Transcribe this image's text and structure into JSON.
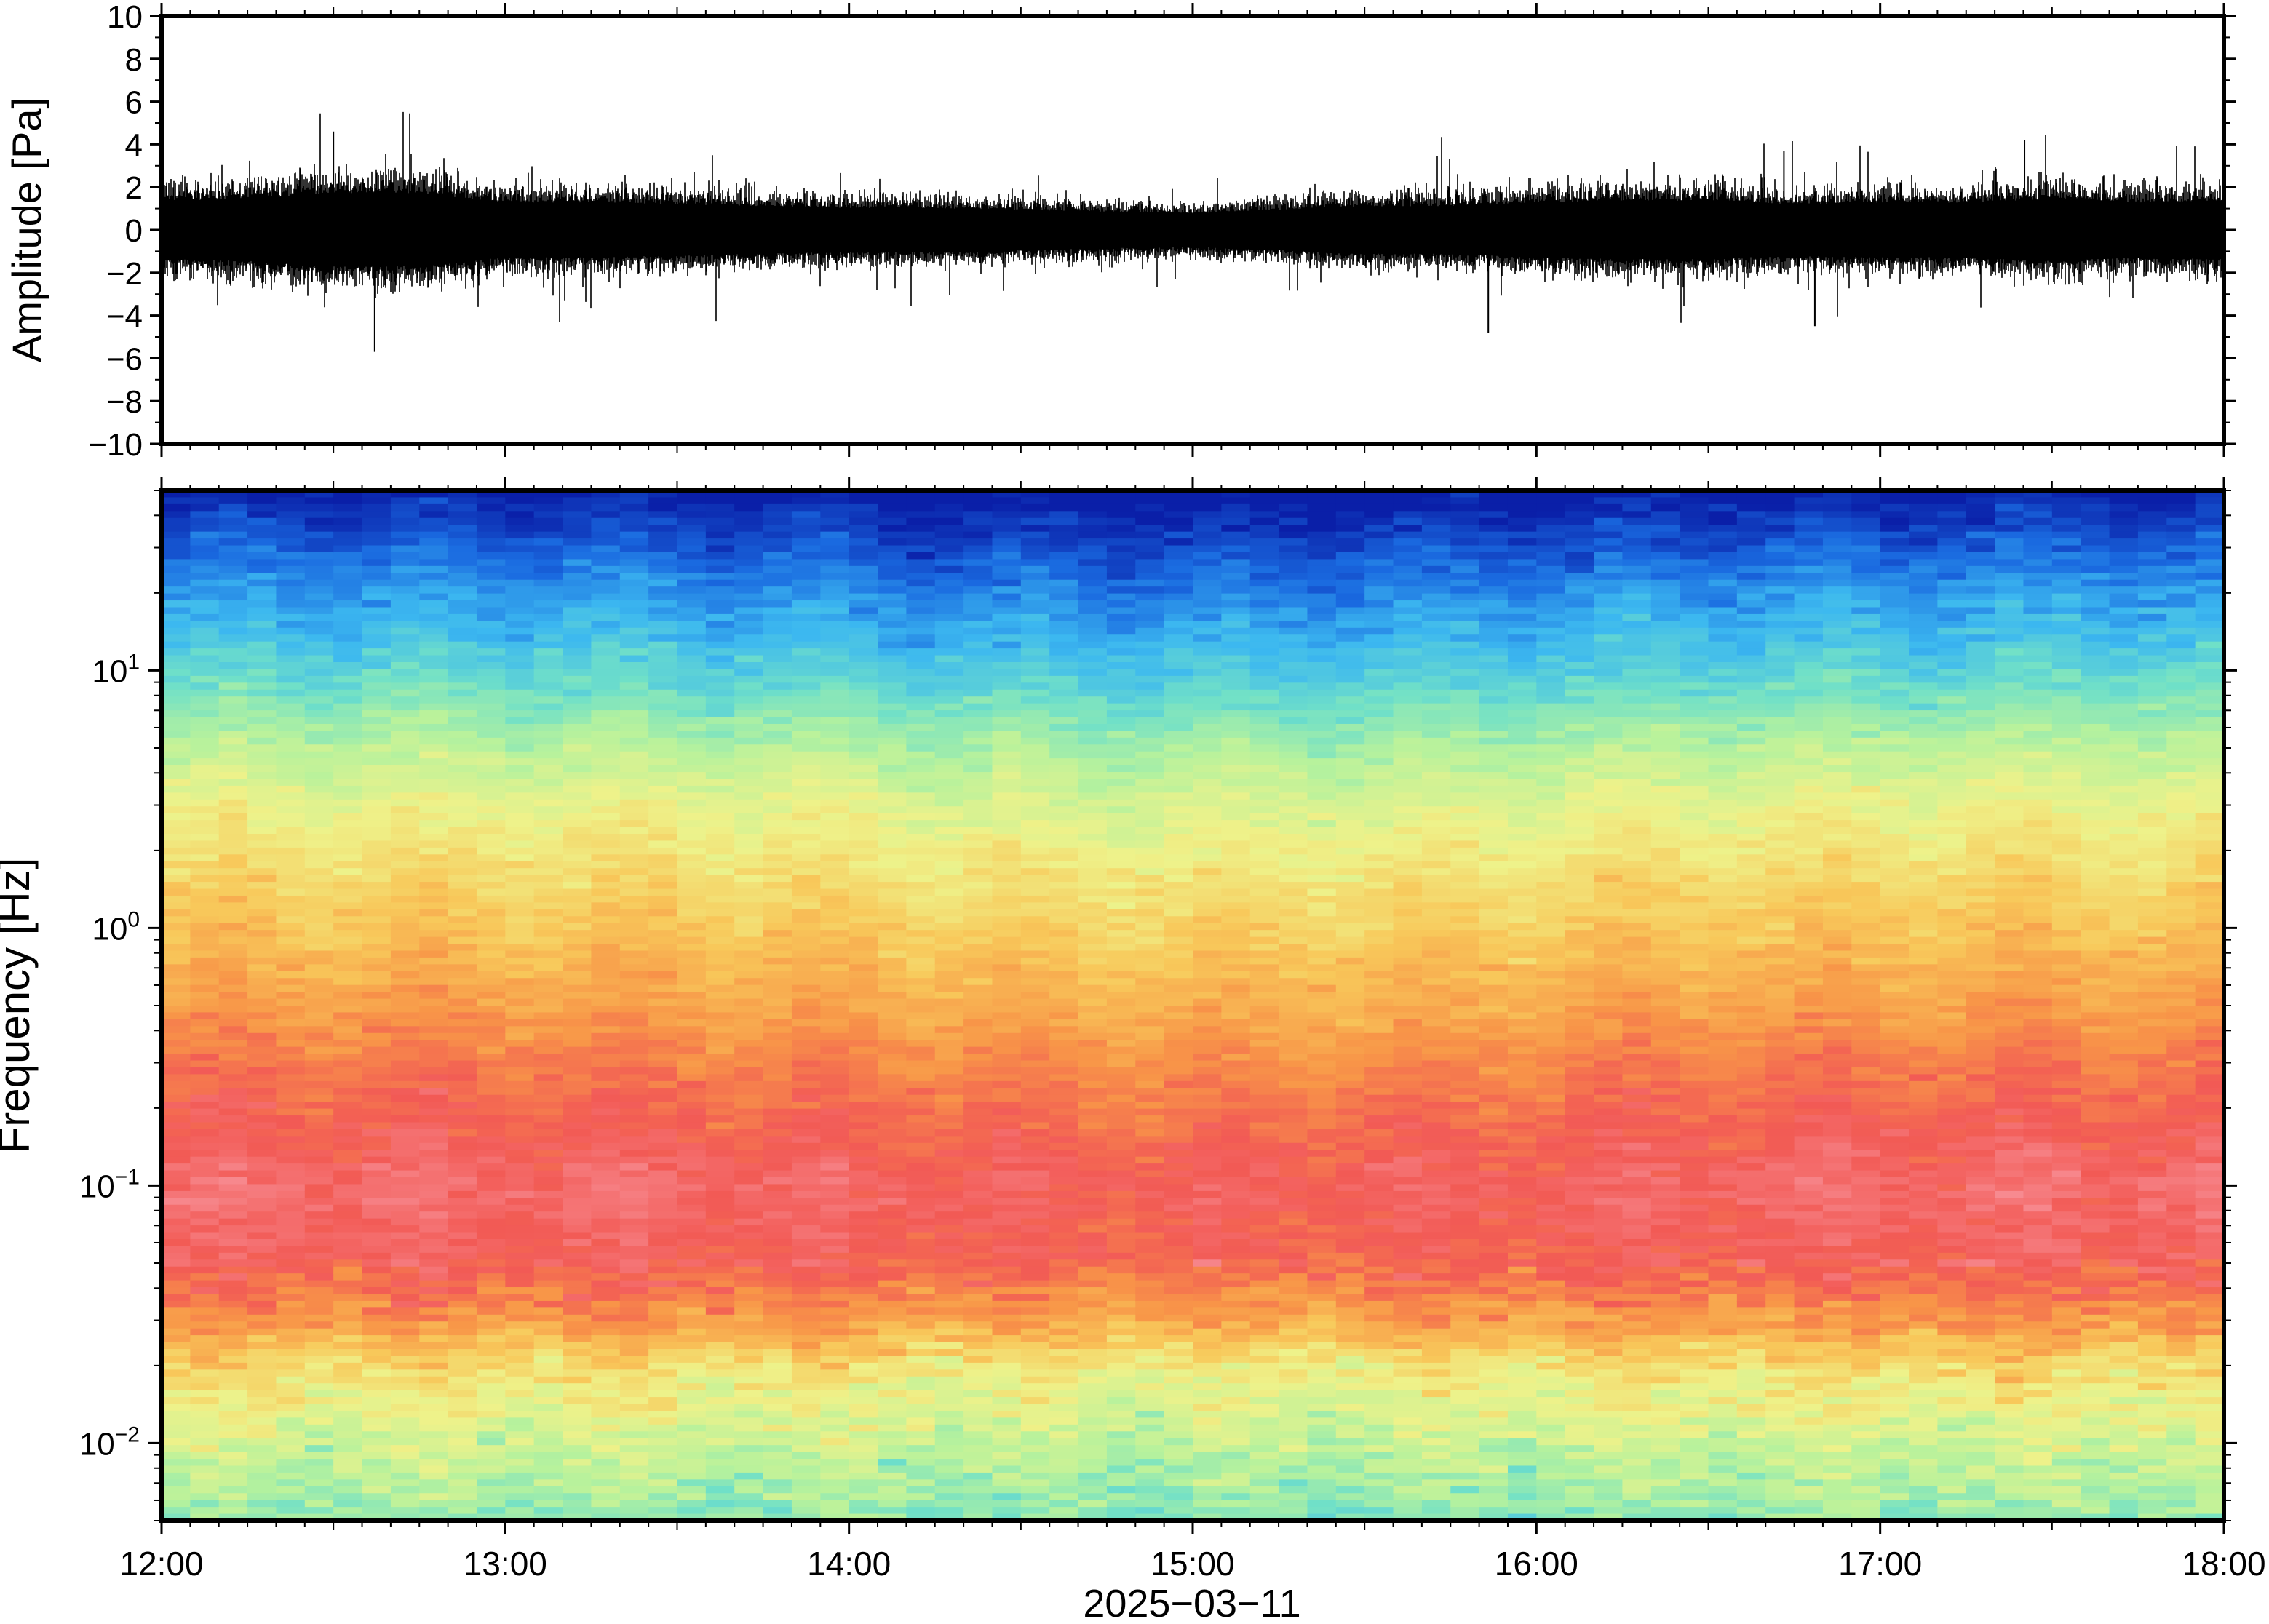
{
  "chart_data": [
    {
      "type": "line",
      "panel": "waveform",
      "ylabel": "Amplitude [Pa]",
      "ylim": [
        -10,
        10
      ],
      "yticks": [
        10,
        8,
        6,
        4,
        2,
        0,
        -2,
        -4,
        -6,
        -8,
        -10
      ],
      "ytick_labels": [
        "10",
        "8",
        "6",
        "4",
        "2",
        "0",
        "−2",
        "−4",
        "−6",
        "−8",
        "−10"
      ],
      "xlim_hours": [
        12,
        18
      ],
      "envelope": {
        "hours": [
          12.0,
          12.25,
          12.5,
          12.75,
          13.0,
          13.25,
          13.5,
          13.75,
          14.0,
          14.25,
          14.5,
          14.75,
          15.0,
          15.25,
          15.5,
          15.75,
          16.0,
          16.25,
          16.5,
          16.75,
          17.0,
          17.25,
          17.5,
          17.75,
          18.0
        ],
        "typical_amplitude": [
          1.6,
          1.7,
          2.0,
          2.0,
          1.5,
          1.5,
          1.4,
          1.3,
          1.2,
          1.2,
          1.1,
          1.0,
          0.9,
          1.1,
          1.3,
          1.3,
          1.5,
          1.6,
          1.6,
          1.4,
          1.5,
          1.5,
          1.7,
          1.5,
          1.6
        ]
      },
      "peaks": [
        {
          "hour": 12.62,
          "value": -5.7
        },
        {
          "hour": 12.5,
          "value": 4.6
        },
        {
          "hour": 16.72,
          "value": 3.7
        },
        {
          "hour": 15.86,
          "value": -4.8
        },
        {
          "hour": 17.42,
          "value": 4.2
        },
        {
          "hour": 16.81,
          "value": -4.5
        }
      ],
      "color": "#000000",
      "grid": false
    },
    {
      "type": "heatmap",
      "panel": "spectrogram",
      "ylabel": "Frequency [Hz]",
      "xlabel": "2025−03−11",
      "yscale": "log",
      "ylim": [
        0.005,
        50
      ],
      "yticks": [
        {
          "base": "10",
          "exp": "1",
          "value": 10
        },
        {
          "base": "10",
          "exp": "0",
          "value": 1
        },
        {
          "base": "10",
          "exp": "−1",
          "value": 0.1
        },
        {
          "base": "10",
          "exp": "−2",
          "value": 0.01
        }
      ],
      "x_tick_labels": [
        "12:00",
        "13:00",
        "14:00",
        "15:00",
        "16:00",
        "17:00",
        "18:00"
      ],
      "xlim_hours": [
        12,
        18
      ],
      "colormap_stops": [
        "#0a1fa8",
        "#1a6ae0",
        "#3cb8f0",
        "#70e0c8",
        "#b8f29c",
        "#eef28a",
        "#f8c85a",
        "#f89648",
        "#f25a55",
        "#f78a90"
      ],
      "bands": [
        {
          "frequency_hz": 50,
          "level": 0.0
        },
        {
          "frequency_hz": 30,
          "level": 0.1
        },
        {
          "frequency_hz": 20,
          "level": 0.18
        },
        {
          "frequency_hz": 10,
          "level": 0.3
        },
        {
          "frequency_hz": 5,
          "level": 0.46
        },
        {
          "frequency_hz": 3,
          "level": 0.55
        },
        {
          "frequency_hz": 1,
          "level": 0.68
        },
        {
          "frequency_hz": 0.5,
          "level": 0.76
        },
        {
          "frequency_hz": 0.3,
          "level": 0.83
        },
        {
          "frequency_hz": 0.1,
          "level": 0.94
        },
        {
          "frequency_hz": 0.05,
          "level": 0.9
        },
        {
          "frequency_hz": 0.03,
          "level": 0.78
        },
        {
          "frequency_hz": 0.02,
          "level": 0.62
        },
        {
          "frequency_hz": 0.01,
          "level": 0.5
        },
        {
          "frequency_hz": 0.005,
          "level": 0.4
        }
      ],
      "grid": false
    }
  ]
}
